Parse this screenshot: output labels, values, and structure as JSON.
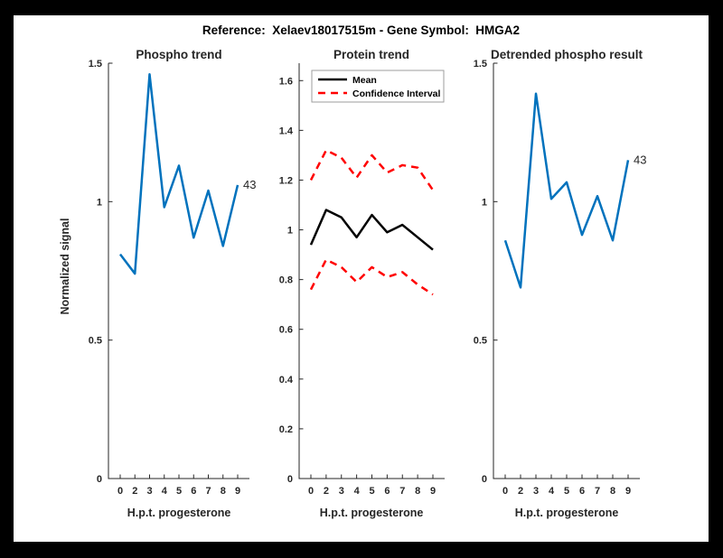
{
  "figure": {
    "title": "Reference:  Xelaev18017515m - Gene Symbol:  HMGA2",
    "background_color": "#000000",
    "canvas_color": "#ffffff",
    "axis_color": "#262626",
    "blue": "#0072BD",
    "red": "#FF0000"
  },
  "chart_data": [
    {
      "type": "line",
      "title": "Phospho trend",
      "xlabel": "H.p.t. progesterone",
      "ylabel": "Normalized signal",
      "categories": [
        "0",
        "2",
        "3",
        "4",
        "5",
        "6",
        "7",
        "8",
        "9"
      ],
      "ylim": [
        0,
        1.5
      ],
      "yticks": [
        0,
        0.5,
        1,
        1.5
      ],
      "grid": false,
      "legend": null,
      "end_label": "43",
      "series": [
        {
          "name": "phospho-signal",
          "color": "#0072BD",
          "dash": "",
          "values": [
            0.81,
            0.74,
            1.46,
            0.98,
            1.13,
            0.87,
            1.04,
            0.84,
            1.06
          ]
        }
      ]
    },
    {
      "type": "line",
      "title": "Protein trend",
      "xlabel": "H.p.t. progesterone",
      "ylabel": "",
      "categories": [
        "0",
        "2",
        "3",
        "4",
        "5",
        "6",
        "7",
        "8",
        "9"
      ],
      "ylim": [
        0,
        1.67
      ],
      "yticks": [
        0,
        0.2,
        0.4,
        0.6,
        0.8,
        1,
        1.2,
        1.4,
        1.6
      ],
      "grid": false,
      "end_label": null,
      "legend": {
        "position": "top-left",
        "entries": [
          {
            "label": "Mean",
            "color": "#000000",
            "dash": ""
          },
          {
            "label": "Confidence Interval",
            "color": "#FF0000",
            "dash": "8 6"
          }
        ]
      },
      "series": [
        {
          "name": "mean",
          "color": "#000000",
          "dash": "",
          "values": [
            0.94,
            1.08,
            1.05,
            0.97,
            1.06,
            0.99,
            1.02,
            0.97,
            0.92
          ]
        },
        {
          "name": "confidence-upper",
          "color": "#FF0000",
          "dash": "8 6",
          "values": [
            1.2,
            1.32,
            1.29,
            1.21,
            1.3,
            1.23,
            1.26,
            1.25,
            1.16
          ]
        },
        {
          "name": "confidence-lower",
          "color": "#FF0000",
          "dash": "8 6",
          "values": [
            0.76,
            0.88,
            0.85,
            0.79,
            0.85,
            0.81,
            0.83,
            0.78,
            0.74
          ]
        }
      ]
    },
    {
      "type": "line",
      "title": "Detrended phospho result",
      "xlabel": "H.p.t. progesterone",
      "ylabel": "",
      "categories": [
        "0",
        "2",
        "3",
        "4",
        "5",
        "6",
        "7",
        "8",
        "9"
      ],
      "ylim": [
        0,
        1.5
      ],
      "yticks": [
        0,
        0.5,
        1,
        1.5
      ],
      "grid": false,
      "legend": null,
      "end_label": "43",
      "series": [
        {
          "name": "detrended-phospho",
          "color": "#0072BD",
          "dash": "",
          "values": [
            0.86,
            0.69,
            1.39,
            1.01,
            1.07,
            0.88,
            1.02,
            0.86,
            1.15
          ]
        }
      ]
    }
  ]
}
